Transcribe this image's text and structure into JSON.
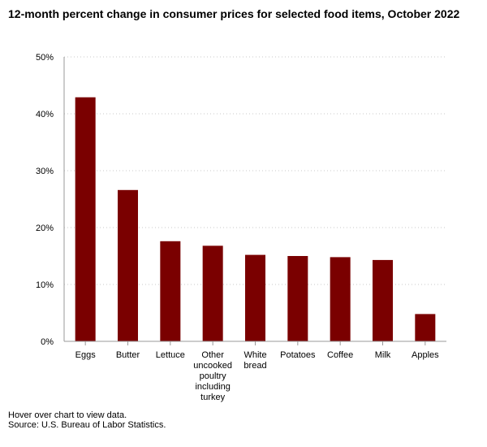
{
  "chart_data": {
    "type": "bar",
    "title": "12-month percent change in consumer prices for selected food items, October 2022",
    "xlabel": "",
    "ylabel": "",
    "categories": [
      "Eggs",
      "Butter",
      "Lettuce",
      "Other uncooked poultry including turkey",
      "White bread",
      "Potatoes",
      "Coffee",
      "Milk",
      "Apples"
    ],
    "category_label_lines": [
      [
        "Eggs"
      ],
      [
        "Butter"
      ],
      [
        "Lettuce"
      ],
      [
        "Other",
        "uncooked",
        "poultry",
        "including",
        "turkey"
      ],
      [
        "White",
        "bread"
      ],
      [
        "Potatoes"
      ],
      [
        "Coffee"
      ],
      [
        "Milk"
      ],
      [
        "Apples"
      ]
    ],
    "values": [
      42.9,
      26.6,
      17.6,
      16.8,
      15.2,
      15.0,
      14.8,
      14.3,
      4.8
    ],
    "ylim": [
      0,
      50
    ],
    "yticks": [
      0,
      10,
      20,
      30,
      40,
      50
    ],
    "ytick_labels": [
      "0%",
      "10%",
      "20%",
      "30%",
      "40%",
      "50%"
    ],
    "bar_color": "#7a0000",
    "grid": true,
    "legend": "none"
  },
  "footnotes": {
    "hover_hint": "Hover over chart to view data.",
    "source": "Source: U.S. Bureau of Labor Statistics."
  }
}
